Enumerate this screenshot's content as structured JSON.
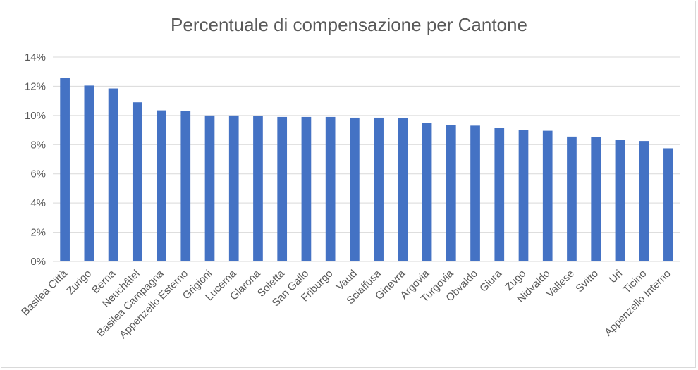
{
  "chart_data": {
    "type": "bar",
    "title": "Percentuale di compensazione per Cantone",
    "xlabel": "",
    "ylabel": "",
    "ylim": [
      0,
      14
    ],
    "y_ticks": [
      0,
      2,
      4,
      6,
      8,
      10,
      12,
      14
    ],
    "y_tick_labels": [
      "0%",
      "2%",
      "4%",
      "6%",
      "8%",
      "10%",
      "12%",
      "14%"
    ],
    "grid": true,
    "legend": "none",
    "bar_color": "#4472C4",
    "categories": [
      "Basilea Città",
      "Zurigo",
      "Berna",
      "Neuchâtel",
      "Basilea Campagna",
      "Appenzello Esterno",
      "Grigioni",
      "Lucerna",
      "Glarona",
      "Soletta",
      "San Gallo",
      "Friburgo",
      "Vaud",
      "Sciaffusa",
      "Ginevra",
      "Argovia",
      "Turgovia",
      "Obvaldo",
      "Giura",
      "Zugo",
      "Nidvaldo",
      "Vallese",
      "Svitto",
      "Uri",
      "Ticino",
      "Appenzello Interno"
    ],
    "values": [
      12.6,
      12.05,
      11.85,
      10.9,
      10.35,
      10.3,
      10.0,
      10.0,
      9.95,
      9.9,
      9.9,
      9.9,
      9.85,
      9.85,
      9.8,
      9.5,
      9.35,
      9.3,
      9.15,
      9.0,
      8.95,
      8.55,
      8.5,
      8.35,
      8.25,
      7.75
    ]
  }
}
